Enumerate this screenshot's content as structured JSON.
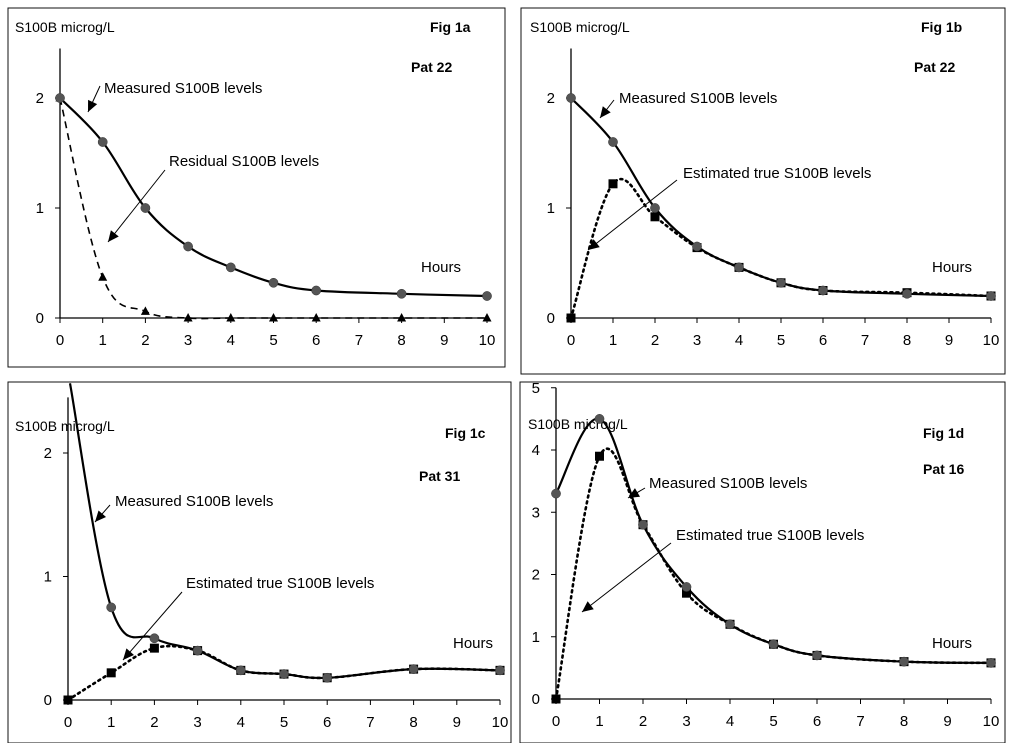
{
  "chart_data": [
    {
      "type": "line",
      "title": "Fig 1a",
      "patient": "Pat 22",
      "ylabel": "S100B microg/L",
      "xlabel": "Hours",
      "xlim": [
        0,
        10
      ],
      "ylim": [
        0,
        2.5
      ],
      "x_ticks": [
        "0",
        "1",
        "2",
        "3",
        "4",
        "5",
        "6",
        "7",
        "8",
        "9",
        "10"
      ],
      "y_ticks": [
        "0",
        "1",
        "2"
      ],
      "series": [
        {
          "name": "Measured S100B levels",
          "x": [
            0,
            1,
            2,
            3,
            4,
            5,
            6,
            8,
            10
          ],
          "values": [
            2.0,
            1.6,
            1.0,
            0.65,
            0.46,
            0.32,
            0.25,
            0.22,
            0.2
          ],
          "style": "solid",
          "marker": "circle"
        },
        {
          "name": "Residual S100B levels",
          "x": [
            0,
            1,
            2,
            3,
            4,
            5,
            6,
            8,
            10
          ],
          "values": [
            2.0,
            0.37,
            0.06,
            0.0,
            0.0,
            0.0,
            0.0,
            0.0,
            0.0
          ],
          "style": "dashed",
          "marker": "triangle"
        }
      ]
    },
    {
      "type": "line",
      "title": "Fig 1b",
      "patient": "Pat 22",
      "ylabel": "S100B microg/L",
      "xlabel": "Hours",
      "xlim": [
        0,
        10
      ],
      "ylim": [
        0,
        2.5
      ],
      "x_ticks": [
        "0",
        "1",
        "2",
        "3",
        "4",
        "5",
        "6",
        "7",
        "8",
        "9",
        "10"
      ],
      "y_ticks": [
        "0",
        "1",
        "2"
      ],
      "series": [
        {
          "name": "Measured S100B levels",
          "x": [
            0,
            1,
            2,
            3,
            4,
            5,
            6,
            8,
            10
          ],
          "values": [
            2.0,
            1.6,
            1.0,
            0.65,
            0.46,
            0.32,
            0.25,
            0.22,
            0.2
          ],
          "style": "solid",
          "marker": "circle"
        },
        {
          "name": "Estimated true S100B levels",
          "x": [
            0,
            1,
            2,
            3,
            4,
            5,
            6,
            8,
            10
          ],
          "values": [
            0.0,
            1.22,
            0.92,
            0.64,
            0.46,
            0.32,
            0.25,
            0.23,
            0.2
          ],
          "style": "dotted",
          "marker": "square"
        }
      ]
    },
    {
      "type": "line",
      "title": "Fig 1c",
      "patient": "Pat 31",
      "ylabel": "S100B microg/L",
      "xlabel": "Hours",
      "xlim": [
        0,
        10
      ],
      "ylim": [
        0,
        2.5
      ],
      "x_ticks": [
        "0",
        "1",
        "2",
        "3",
        "4",
        "5",
        "6",
        "7",
        "8",
        "9",
        "10"
      ],
      "y_ticks": [
        "0",
        "1",
        "2"
      ],
      "series": [
        {
          "name": "Measured S100B levels",
          "x": [
            0,
            1,
            2,
            3,
            4,
            5,
            6,
            8,
            10
          ],
          "values": [
            2.6,
            0.75,
            0.5,
            0.4,
            0.24,
            0.21,
            0.18,
            0.25,
            0.24
          ],
          "style": "solid",
          "marker": "circle"
        },
        {
          "name": "Estimated true S100B levels",
          "x": [
            0,
            1,
            2,
            3,
            4,
            5,
            6,
            8,
            10
          ],
          "values": [
            0.0,
            0.22,
            0.42,
            0.4,
            0.24,
            0.21,
            0.18,
            0.25,
            0.24
          ],
          "style": "dotted",
          "marker": "square"
        }
      ]
    },
    {
      "type": "line",
      "title": "Fig 1d",
      "patient": "Pat 16",
      "ylabel": "S100B microg/L",
      "xlabel": "Hours",
      "xlim": [
        0,
        10
      ],
      "ylim": [
        0,
        5
      ],
      "x_ticks": [
        "0",
        "1",
        "2",
        "3",
        "4",
        "5",
        "6",
        "7",
        "8",
        "9",
        "10"
      ],
      "y_ticks": [
        "0",
        "1",
        "2",
        "3",
        "4",
        "5"
      ],
      "series": [
        {
          "name": "Measured S100B levels",
          "x": [
            0,
            1,
            2,
            3,
            4,
            5,
            6,
            8,
            10
          ],
          "values": [
            3.3,
            4.5,
            2.8,
            1.8,
            1.2,
            0.88,
            0.7,
            0.6,
            0.58
          ],
          "style": "solid",
          "marker": "circle"
        },
        {
          "name": "Estimated true S100B levels",
          "x": [
            0,
            1,
            2,
            3,
            4,
            5,
            6,
            8,
            10
          ],
          "values": [
            0.0,
            3.9,
            2.8,
            1.7,
            1.2,
            0.88,
            0.7,
            0.6,
            0.58
          ],
          "style": "dotted",
          "marker": "square"
        }
      ]
    }
  ]
}
